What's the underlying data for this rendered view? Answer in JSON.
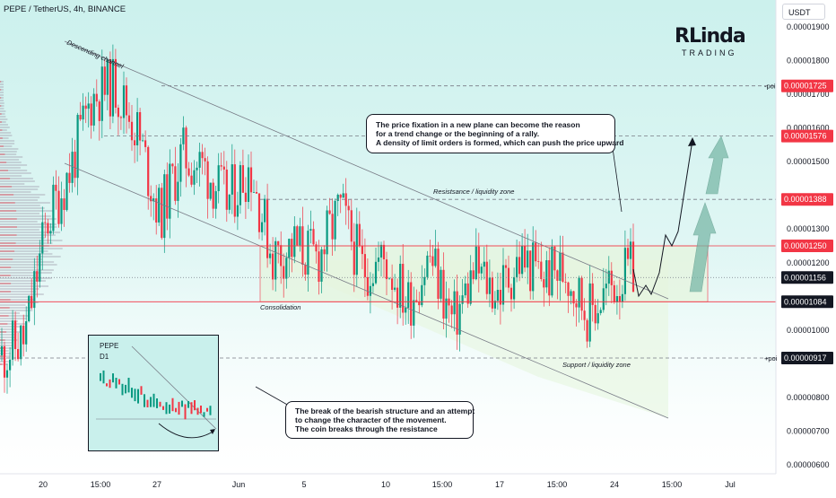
{
  "header": {
    "symbol_title": "PEPE / TetherUS, 4h, BINANCE",
    "currency_button": "USDT"
  },
  "logo": {
    "line1": "RLinda",
    "line2": "TRADING"
  },
  "colors": {
    "background_tint": "#c9f0ec",
    "bull": "#089981",
    "bear": "#f23645",
    "channel_line": "#787b86",
    "zone_line": "#f23645",
    "zone_fill": "#e6f5de",
    "arrow_fill": "#7ab8a8"
  },
  "chart_data": {
    "type": "candlestick",
    "symbol": "PEPE / TetherUS",
    "timeframe": "4h",
    "exchange": "BINANCE",
    "y_axis": {
      "ticks": [
        "0.00001900",
        "0.00001800",
        "0.00001700",
        "0.00001600",
        "0.00001500",
        "0.00001300",
        "0.00001200",
        "0.00001000",
        "0.00000800",
        "0.00000700",
        "0.00000600"
      ],
      "range": [
        5.8e-06,
        1.97e-05
      ]
    },
    "x_axis": {
      "ticks": [
        "20",
        "15:00",
        "27",
        "Jun",
        "5",
        "10",
        "15:00",
        "17",
        "15:00",
        "24",
        "15:00",
        "Jul"
      ]
    },
    "price_levels": [
      {
        "label": "0.00001725",
        "value": 1.725e-05,
        "style": "dashed",
        "side_note": "-poi"
      },
      {
        "label": "0.00001576",
        "value": 1.576e-05,
        "style": "dashed",
        "side_note": ""
      },
      {
        "label": "0.00001388",
        "value": 1.388e-05,
        "style": "dashed",
        "side_note": ""
      },
      {
        "label": "0.00001250",
        "value": 1.25e-05,
        "style": "solid",
        "side_note": ""
      },
      {
        "label": "0.00001156",
        "value": 1.156e-05,
        "style": "dotted",
        "side_note": ""
      },
      {
        "label": "0.00001084",
        "value": 1.084e-05,
        "style": "solid",
        "side_note": ""
      },
      {
        "label": "0.00000917",
        "value": 9.17e-06,
        "style": "dashed",
        "side_note": "+poi"
      }
    ],
    "current_price": 1.156e-05,
    "price_path_key_points": [
      9.25e-06,
      9.7e-06,
      1.32e-05,
      1.47e-05,
      1.69e-05,
      1.73e-05,
      1.59e-05,
      1.34e-05,
      1.52e-05,
      1.48e-05,
      1.38e-05,
      1.49e-05,
      1.22e-05,
      1.25e-05,
      1.21e-05,
      1.36e-05,
      1.18e-05,
      1.21e-05,
      1.08e-05,
      1.22e-05,
      1.02e-05,
      1.18e-05,
      1.11e-05,
      1.21e-05,
      1.16e-05,
      1.18e-05,
      1.05e-05,
      1.13e-05,
      1.18e-05
    ],
    "labels": {
      "channel": "Descending channel",
      "resistance": "Resistsance / liquidity zone",
      "consolidation": "Consolidation",
      "support": "Support / liquidity zone"
    }
  },
  "annotations": {
    "top_box": [
      "The price fixation in a new plane can become the reason",
      "for a trend change or the beginning of a rally.",
      "A density of limit orders is formed, which can push the price upward"
    ],
    "bottom_box": [
      "The break of the bearish structure and an attempt",
      "to change the character of the movement.",
      "The coin breaks through the resistance"
    ]
  },
  "inset": {
    "title": "PEPE",
    "timeframe": "D1"
  }
}
